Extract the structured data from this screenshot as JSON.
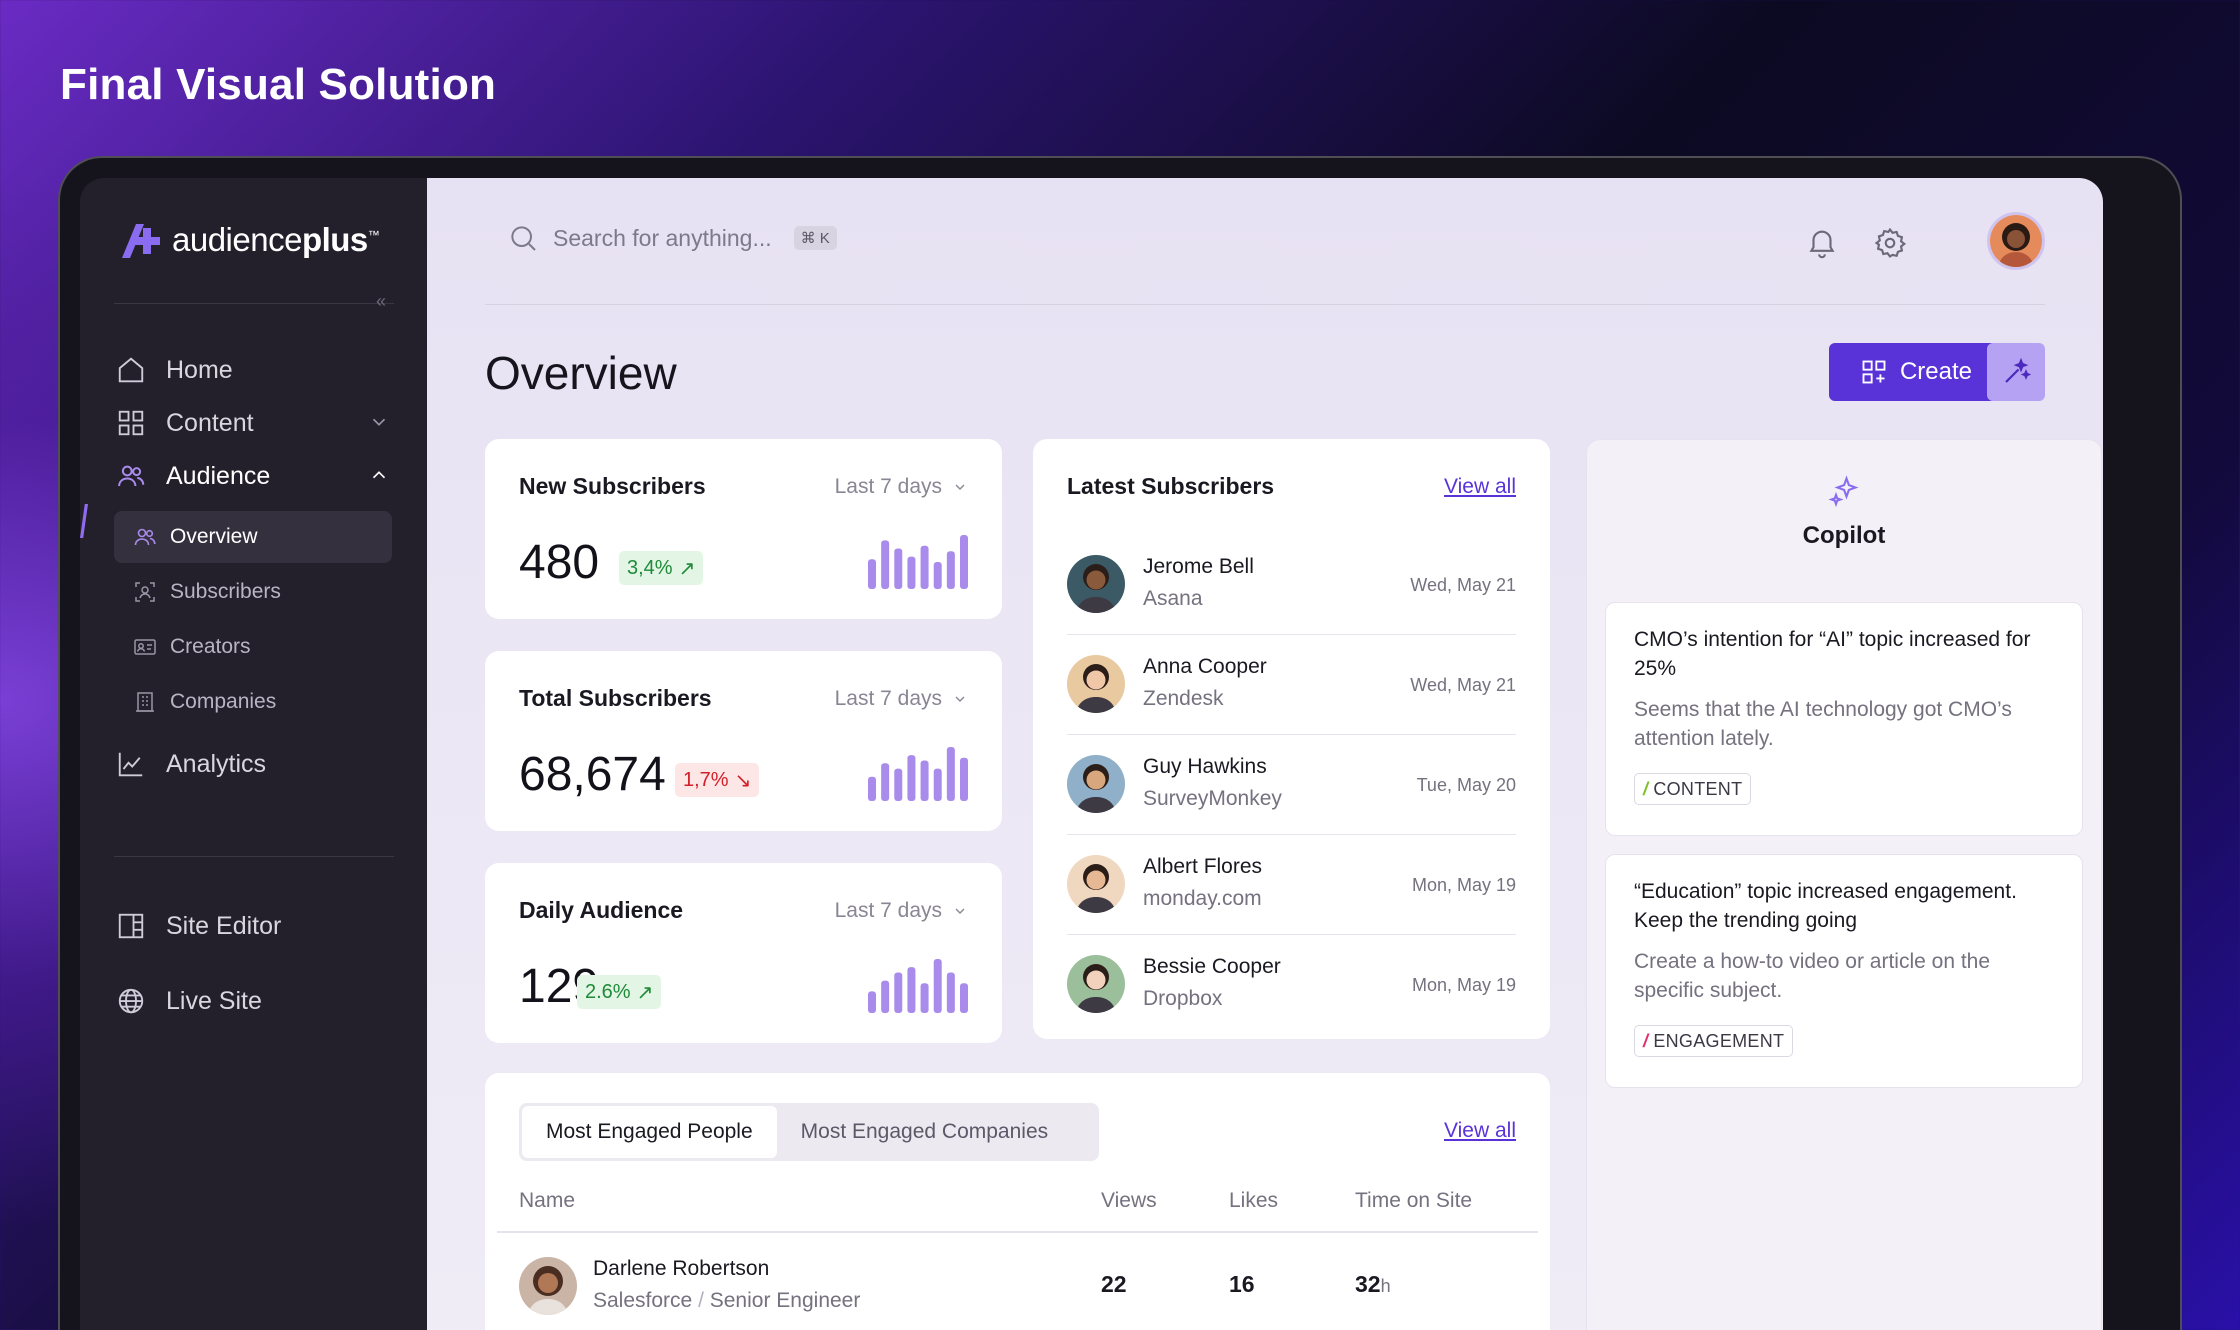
{
  "page": {
    "title": "Final Visual Solution"
  },
  "brand": {
    "name_light": "audience",
    "name_bold": "plus",
    "tm": "™"
  },
  "sidebar": {
    "items": [
      {
        "label": "Home",
        "icon": "home-icon"
      },
      {
        "label": "Content",
        "icon": "grid-icon"
      },
      {
        "label": "Audience",
        "icon": "users-icon"
      },
      {
        "label": "Analytics",
        "icon": "chart-line-icon"
      },
      {
        "label": "Site Editor",
        "icon": "layout-icon"
      },
      {
        "label": "Live Site",
        "icon": "globe-icon"
      }
    ],
    "audience_sub": [
      {
        "label": "Overview",
        "icon": "users-icon"
      },
      {
        "label": "Subscribers",
        "icon": "user-frame-icon"
      },
      {
        "label": "Creators",
        "icon": "id-card-icon"
      },
      {
        "label": "Companies",
        "icon": "building-icon"
      }
    ]
  },
  "header": {
    "search_placeholder": "Search for anything...",
    "shortcut": "⌘ K"
  },
  "overview": {
    "title": "Overview",
    "create_label": "Create"
  },
  "stats": [
    {
      "title": "New Subscribers",
      "range": "Last 7 days",
      "value": "480",
      "change": "3,4%",
      "trend": "up",
      "bars": [
        0.55,
        0.9,
        0.75,
        0.6,
        0.8,
        0.5,
        0.7,
        1.0
      ]
    },
    {
      "title": "Total Subscribers",
      "range": "Last 7 days",
      "value": "68,674",
      "change": "1,7%",
      "trend": "down",
      "bars": [
        0.45,
        0.7,
        0.6,
        0.85,
        0.75,
        0.6,
        1.0,
        0.8
      ]
    },
    {
      "title": "Daily Audience",
      "range": "Last 7 days",
      "value": "129",
      "change": "2.6%",
      "trend": "up",
      "bars": [
        0.4,
        0.6,
        0.75,
        0.85,
        0.55,
        1.0,
        0.75,
        0.55
      ]
    }
  ],
  "latest": {
    "title": "Latest Subscribers",
    "view_all": "View all",
    "rows": [
      {
        "name": "Jerome Bell",
        "company": "Asana",
        "date": "Wed, May 21",
        "avatar_bg": "#3b5a66",
        "skin": "#8a5a3c"
      },
      {
        "name": "Anna Cooper",
        "company": "Zendesk",
        "date": "Wed, May 21",
        "avatar_bg": "#e8c9a0",
        "skin": "#f0c8a8"
      },
      {
        "name": "Guy Hawkins",
        "company": "SurveyMonkey",
        "date": "Tue, May 20",
        "avatar_bg": "#8fb0c8",
        "skin": "#d9a77e"
      },
      {
        "name": "Albert Flores",
        "company": "monday.com",
        "date": "Mon, May 19",
        "avatar_bg": "#f0d8c0",
        "skin": "#e6b894"
      },
      {
        "name": "Bessie Cooper",
        "company": "Dropbox",
        "date": "Mon, May 19",
        "avatar_bg": "#9bbf9a",
        "skin": "#f2d2bd"
      }
    ]
  },
  "engaged": {
    "tabs": [
      "Most Engaged People",
      "Most Engaged Companies"
    ],
    "view_all": "View all",
    "columns": [
      "Name",
      "Views",
      "Likes",
      "Time on Site"
    ],
    "rows": [
      {
        "name": "Darlene Robertson",
        "company": "Salesforce",
        "sep": "/",
        "role": "Senior Engineer",
        "views": "22",
        "likes": "16",
        "time": "32",
        "time_unit": "h"
      }
    ]
  },
  "copilot": {
    "title": "Copilot",
    "insights": [
      {
        "title": "CMO’s intention for “AI” topic increased for 25%",
        "body": "Seems that the AI technology got CMO’s attention lately.",
        "tag": "CONTENT",
        "tag_color": "#7bc12a"
      },
      {
        "title": "“Education” topic increased engagement. Keep the trending going",
        "body": "Create a how-to video or article on the specific subject.",
        "tag": "ENGAGEMENT",
        "tag_color": "#e0306a"
      }
    ]
  },
  "colors": {
    "accent": "#5a33d8",
    "sidebar_bg": "#23202c",
    "bar": "#a98bec"
  }
}
